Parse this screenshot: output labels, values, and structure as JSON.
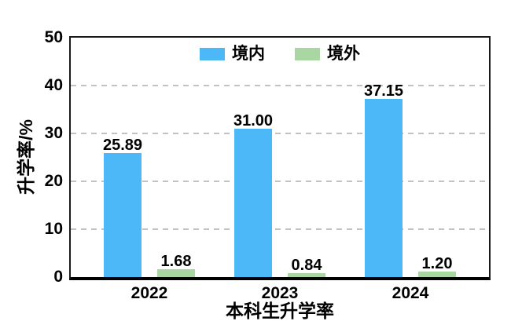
{
  "chart_data": {
    "type": "bar",
    "title": "",
    "xlabel": "本科生升学率",
    "ylabel": "升学率/%",
    "categories": [
      "2022",
      "2023",
      "2024"
    ],
    "series": [
      {
        "key": "domestic",
        "name": "境内",
        "color": "#4DB8F8",
        "values": [
          25.89,
          31.0,
          37.15
        ],
        "labels": [
          "25.89",
          "31.00",
          "37.15"
        ]
      },
      {
        "key": "overseas",
        "name": "境外",
        "color": "#A8D7A1",
        "values": [
          1.68,
          0.84,
          1.2
        ],
        "labels": [
          "1.68",
          "0.84",
          "1.20"
        ]
      }
    ],
    "ylim": [
      0,
      50
    ],
    "yticks": [
      0,
      10,
      20,
      30,
      40,
      50
    ],
    "grid": {
      "horizontal": true,
      "style": "dashed",
      "color": "#C2C2C2",
      "at": [
        10,
        20,
        30,
        40
      ]
    },
    "legend": {
      "position": "top-center-inside"
    }
  },
  "colors": {
    "background": "#FFFFFF",
    "frame": "#1A1A1A",
    "axis_bottom": "#000000",
    "text": "#000000"
  }
}
